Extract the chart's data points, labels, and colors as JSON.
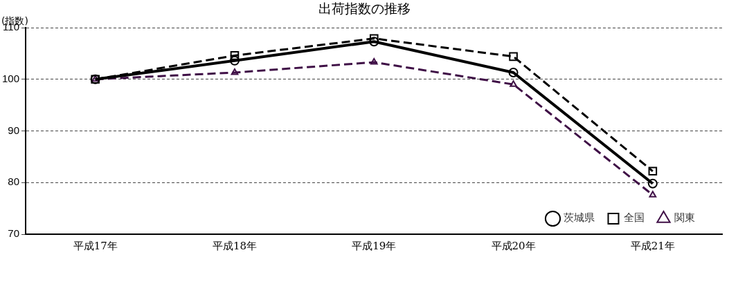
{
  "chart_data": {
    "type": "line",
    "title": "出荷指数の推移",
    "ylabel": "(指数)",
    "categories": [
      "平成17年",
      "平成18年",
      "平成19年",
      "平成20年",
      "平成21年"
    ],
    "series": [
      {
        "name": "茨城県",
        "color": "#000000",
        "marker": "circle",
        "line_style": "solid",
        "values": [
          100,
          103.6,
          107.3,
          101.3,
          79.8
        ]
      },
      {
        "name": "全国",
        "color": "#000000",
        "marker": "square",
        "line_style": "dashed",
        "values": [
          100,
          104.6,
          107.9,
          104.4,
          82.2
        ]
      },
      {
        "name": "関東",
        "color": "#3f0f46",
        "marker": "triangle",
        "line_style": "dashed",
        "values": [
          100,
          101.3,
          103.3,
          99.0,
          77.6
        ]
      }
    ],
    "ylim": [
      70,
      110
    ],
    "yticks": [
      70,
      80,
      90,
      100,
      110
    ],
    "grid": "y",
    "legend": "bottom right"
  }
}
